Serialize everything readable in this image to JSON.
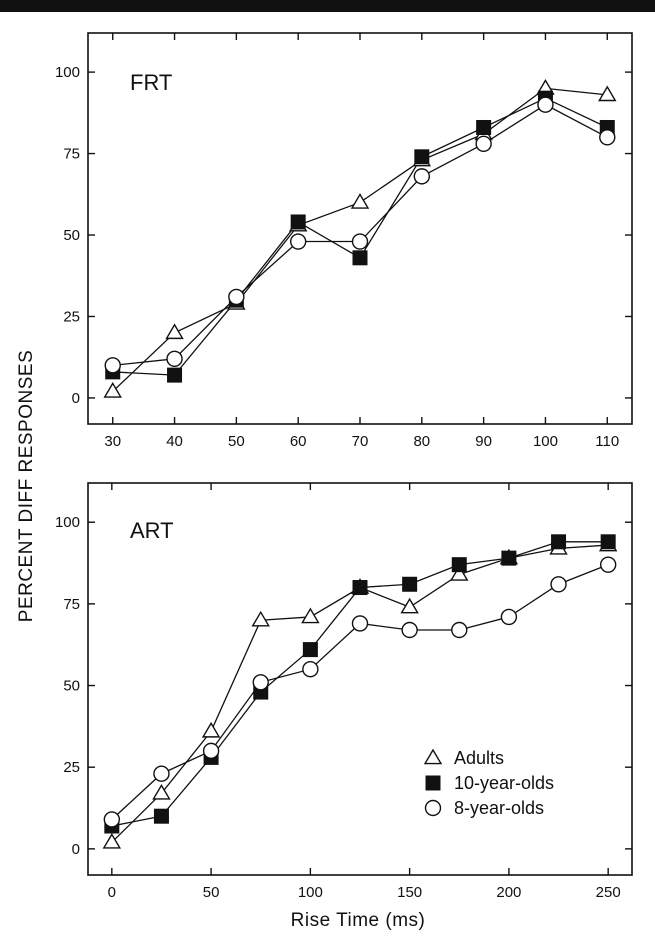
{
  "shared": {
    "ylabel": "PERCENT DIFF RESPONSES",
    "xlabel": "Rise Time (ms)"
  },
  "legend": [
    {
      "name": "Adults",
      "marker": "triangle"
    },
    {
      "name": "10-year-olds",
      "marker": "square"
    },
    {
      "name": "8-year-olds",
      "marker": "circle"
    }
  ],
  "chart_data": [
    {
      "type": "line",
      "panel_label": "FRT",
      "xlabel": "",
      "ylabel": "PERCENT DIFF RESPONSES",
      "xlim": [
        26,
        114
      ],
      "ylim": [
        -8,
        112
      ],
      "xticks": [
        30,
        40,
        50,
        60,
        70,
        80,
        90,
        100,
        110
      ],
      "yticks": [
        0,
        25,
        50,
        75,
        100
      ],
      "x": [
        30,
        40,
        50,
        60,
        70,
        80,
        90,
        100,
        110
      ],
      "series": [
        {
          "name": "Adults",
          "marker": "triangle",
          "values": [
            2,
            20,
            29,
            53,
            60,
            73,
            81,
            95,
            93
          ]
        },
        {
          "name": "10-year-olds",
          "marker": "square",
          "values": [
            8,
            7,
            30,
            54,
            43,
            74,
            83,
            92,
            83
          ]
        },
        {
          "name": "8-year-olds",
          "marker": "circle",
          "values": [
            10,
            12,
            31,
            48,
            48,
            68,
            78,
            90,
            80
          ]
        }
      ]
    },
    {
      "type": "line",
      "panel_label": "ART",
      "xlabel": "Rise Time (ms)",
      "ylabel": "PERCENT DIFF RESPONSES",
      "xlim": [
        -12,
        262
      ],
      "ylim": [
        -8,
        112
      ],
      "xticks": [
        0,
        50,
        100,
        150,
        200,
        250
      ],
      "yticks": [
        0,
        25,
        50,
        75,
        100
      ],
      "x": [
        0,
        25,
        50,
        75,
        100,
        125,
        150,
        175,
        200,
        225,
        250
      ],
      "series": [
        {
          "name": "Adults",
          "marker": "triangle",
          "values": [
            2,
            17,
            36,
            70,
            71,
            80,
            74,
            84,
            89,
            92,
            93
          ]
        },
        {
          "name": "10-year-olds",
          "marker": "square",
          "values": [
            7,
            10,
            28,
            48,
            61,
            80,
            81,
            87,
            89,
            94,
            94
          ]
        },
        {
          "name": "8-year-olds",
          "marker": "circle",
          "values": [
            9,
            23,
            30,
            51,
            55,
            69,
            67,
            67,
            71,
            81,
            87
          ]
        }
      ]
    }
  ]
}
